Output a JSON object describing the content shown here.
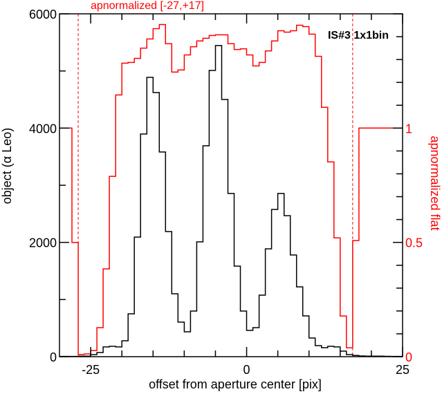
{
  "chart_data": {
    "type": "line",
    "step": true,
    "title": "apnormalized [-27,+17]",
    "annotation": "IS#3 1x1bin",
    "xlabel": "offset from aperture center [pix]",
    "ylabel": "object (α Leo)",
    "ylabel_right": "apnormalized flat",
    "xlim": [
      -30,
      25
    ],
    "ylim": [
      0,
      6000
    ],
    "ylim_right": [
      0,
      1.5
    ],
    "xticks": [
      -25,
      0,
      25
    ],
    "xtick_labels": [
      "-25",
      "0",
      "25"
    ],
    "xminor_step": 5,
    "yticks": [
      0,
      2000,
      4000,
      6000
    ],
    "ytick_labels": [
      "0",
      "2000",
      "4000",
      "6000"
    ],
    "yminor_step": 1000,
    "yticks_right": [
      0,
      0.5,
      1
    ],
    "ytick_labels_right": [
      "0",
      "0.5",
      "1"
    ],
    "yminor_step_right": 0.1,
    "vlines": [
      -27,
      17
    ],
    "grid": false,
    "colors": {
      "object": "#000000",
      "flat": "#ff0000",
      "axes": "#000000"
    },
    "bin_edges_start": -30,
    "bin_width": 1,
    "series": [
      {
        "name": "object (α Leo)",
        "axis": "left",
        "color": "#000000",
        "x_left_edges": [
          -30,
          -29,
          -28,
          -27,
          -26,
          -25,
          -24,
          -23,
          -22,
          -21,
          -20,
          -19,
          -18,
          -17,
          -16,
          -15,
          -14,
          -13,
          -12,
          -11,
          -10,
          -9,
          -8,
          -7,
          -6,
          -5,
          -4,
          -3,
          -2,
          -1,
          0,
          1,
          2,
          3,
          4,
          5,
          6,
          7,
          8,
          9,
          10,
          11,
          12,
          13,
          14,
          15,
          16,
          17,
          18,
          19,
          20,
          21,
          22,
          23,
          24
        ],
        "values": [
          5,
          5,
          5,
          8,
          10,
          36,
          73,
          170,
          182,
          170,
          278,
          750,
          2093,
          3896,
          4888,
          4622,
          3582,
          2190,
          1101,
          605,
          435,
          798,
          2009,
          3691,
          5009,
          5445,
          4501,
          2856,
          1585,
          798,
          460,
          508,
          1077,
          1887,
          2577,
          2856,
          2468,
          1779,
          1222,
          714,
          327,
          194,
          157,
          182,
          170,
          97,
          36,
          20,
          12,
          10,
          8,
          8,
          6,
          5,
          5
        ]
      },
      {
        "name": "apnormalized flat",
        "axis": "right",
        "color": "#ff0000",
        "x_left_edges": [
          -30,
          -29,
          -28,
          -27,
          -26,
          -25,
          -24,
          -23,
          -22,
          -21,
          -20,
          -19,
          -18,
          -17,
          -16,
          -15,
          -14,
          -13,
          -12,
          -11,
          -10,
          -9,
          -8,
          -7,
          -6,
          -5,
          -4,
          -3,
          -2,
          -1,
          0,
          1,
          2,
          3,
          4,
          5,
          6,
          7,
          8,
          9,
          10,
          11,
          12,
          13,
          14,
          15,
          16,
          17,
          18,
          19,
          20,
          21,
          22,
          23,
          24
        ],
        "values": [
          1.0,
          1.0,
          0.5,
          0.01,
          0.012,
          0.027,
          0.127,
          0.384,
          0.789,
          1.145,
          1.284,
          1.287,
          1.305,
          1.35,
          1.39,
          1.435,
          1.453,
          1.369,
          1.245,
          1.254,
          1.32,
          1.356,
          1.381,
          1.393,
          1.405,
          1.408,
          1.408,
          1.369,
          1.344,
          1.347,
          1.32,
          1.272,
          1.287,
          1.338,
          1.381,
          1.426,
          1.42,
          1.426,
          1.45,
          1.444,
          1.411,
          1.314,
          1.091,
          0.852,
          0.52,
          0.178,
          0.039,
          0.508,
          1.0,
          1.0,
          1.0,
          1.0,
          1.0,
          1.0,
          1.0
        ]
      }
    ]
  }
}
